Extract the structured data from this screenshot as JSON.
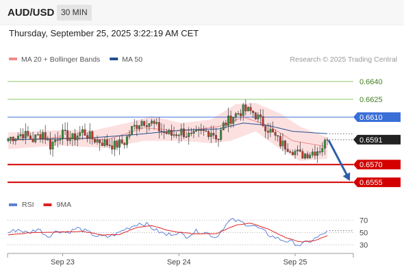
{
  "header": {
    "symbol": "AUD/USD",
    "timeframe": "30 MIN",
    "datetime": "Thursday, September 25, 2025 3:22:19 AM CET"
  },
  "colors": {
    "candle_up": "#3a8f3a",
    "candle_down": "#c0392b",
    "ma20": "#f08a8a",
    "band_fill": "#fbd6d6",
    "ma50": "#1f4e8f",
    "level_green": "#8cc96b",
    "level_blue": "#3a6fd8",
    "level_red": "#d40000",
    "arrow": "#2d5fa8",
    "rsi": "#5b80d6",
    "rsi_ma": "#e02020"
  },
  "chart_data": [
    {
      "type": "candlestick",
      "legend": [
        {
          "name": "MA 20 + Bollinger Bands",
          "color": "#f08a8a"
        },
        {
          "name": "MA 50",
          "color": "#1f4e8f"
        }
      ],
      "legend_position": "top-left",
      "watermark": "Research © 2025 Trading Central",
      "ylim": [
        0.6547,
        0.6651
      ],
      "levels": [
        {
          "value": 0.664,
          "label": "0.6640",
          "style": "green"
        },
        {
          "value": 0.6625,
          "label": "0.6625",
          "style": "green"
        },
        {
          "value": 0.661,
          "label": "0.6610",
          "style": "blue"
        },
        {
          "value": 0.6591,
          "label": "0.6591",
          "style": "current"
        },
        {
          "value": 0.657,
          "label": "0.6570",
          "style": "red"
        },
        {
          "value": 0.6555,
          "label": "0.6555",
          "style": "red"
        }
      ],
      "anchors": [
        [
          0,
          0.6592
        ],
        [
          6,
          0.6596
        ],
        [
          10,
          0.6591
        ],
        [
          14,
          0.6597
        ],
        [
          17,
          0.6586
        ],
        [
          21,
          0.6596
        ],
        [
          26,
          0.6592
        ],
        [
          30,
          0.6598
        ],
        [
          34,
          0.6592
        ],
        [
          38,
          0.6589
        ],
        [
          43,
          0.6586
        ],
        [
          47,
          0.6589
        ],
        [
          50,
          0.66
        ],
        [
          54,
          0.6607
        ],
        [
          58,
          0.6605
        ],
        [
          62,
          0.6598
        ],
        [
          66,
          0.6595
        ],
        [
          70,
          0.6598
        ],
        [
          74,
          0.6593
        ],
        [
          78,
          0.6597
        ],
        [
          82,
          0.6598
        ],
        [
          85,
          0.6592
        ],
        [
          87,
          0.6603
        ],
        [
          91,
          0.6611
        ],
        [
          95,
          0.6616
        ],
        [
          99,
          0.6614
        ],
        [
          102,
          0.6607
        ],
        [
          106,
          0.6598
        ],
        [
          110,
          0.6588
        ],
        [
          114,
          0.6584
        ],
        [
          118,
          0.6578
        ],
        [
          122,
          0.658
        ],
        [
          126,
          0.6583
        ],
        [
          128,
          0.6588
        ],
        [
          129,
          0.6591
        ]
      ],
      "ma20": [
        [
          0,
          0.659
        ],
        [
          20,
          0.6593
        ],
        [
          40,
          0.6591
        ],
        [
          55,
          0.6601
        ],
        [
          70,
          0.6598
        ],
        [
          85,
          0.6602
        ],
        [
          95,
          0.661
        ],
        [
          105,
          0.6603
        ],
        [
          115,
          0.659
        ],
        [
          129,
          0.6585
        ]
      ],
      "band_upper": [
        [
          0,
          0.6597
        ],
        [
          20,
          0.6599
        ],
        [
          35,
          0.6599
        ],
        [
          50,
          0.6606
        ],
        [
          58,
          0.6611
        ],
        [
          70,
          0.6605
        ],
        [
          82,
          0.6608
        ],
        [
          92,
          0.6621
        ],
        [
          100,
          0.6622
        ],
        [
          110,
          0.6613
        ],
        [
          118,
          0.6602
        ],
        [
          129,
          0.6593
        ]
      ],
      "band_lower": [
        [
          0,
          0.6583
        ],
        [
          20,
          0.6586
        ],
        [
          40,
          0.6584
        ],
        [
          55,
          0.659
        ],
        [
          70,
          0.659
        ],
        [
          82,
          0.6588
        ],
        [
          90,
          0.659
        ],
        [
          100,
          0.6598
        ],
        [
          110,
          0.6583
        ],
        [
          118,
          0.6573
        ],
        [
          129,
          0.6575
        ]
      ],
      "ma50": [
        [
          0,
          0.6591
        ],
        [
          30,
          0.6592
        ],
        [
          50,
          0.6595
        ],
        [
          70,
          0.6599
        ],
        [
          85,
          0.66
        ],
        [
          95,
          0.6605
        ],
        [
          105,
          0.6603
        ],
        [
          115,
          0.6598
        ],
        [
          129,
          0.6596
        ]
      ],
      "forecast_arrow": {
        "from": 0.6591,
        "to": 0.6555
      }
    },
    {
      "type": "line",
      "legend": [
        {
          "name": "RSI",
          "color": "#5b80d6"
        },
        {
          "name": "9MA",
          "color": "#e02020"
        }
      ],
      "ylim": [
        23,
        78
      ],
      "yticks": [
        70,
        50,
        30
      ],
      "rsi": [
        [
          0,
          50
        ],
        [
          4,
          55
        ],
        [
          8,
          49
        ],
        [
          12,
          56
        ],
        [
          16,
          44
        ],
        [
          20,
          53
        ],
        [
          24,
          50
        ],
        [
          28,
          57
        ],
        [
          32,
          51
        ],
        [
          36,
          44
        ],
        [
          40,
          43
        ],
        [
          44,
          48
        ],
        [
          47,
          55
        ],
        [
          50,
          60
        ],
        [
          53,
          65
        ],
        [
          56,
          63
        ],
        [
          60,
          53
        ],
        [
          64,
          46
        ],
        [
          68,
          50
        ],
        [
          72,
          44
        ],
        [
          76,
          52
        ],
        [
          80,
          50
        ],
        [
          84,
          42
        ],
        [
          87,
          58
        ],
        [
          90,
          70
        ],
        [
          93,
          68
        ],
        [
          96,
          64
        ],
        [
          99,
          61
        ],
        [
          102,
          55
        ],
        [
          106,
          45
        ],
        [
          110,
          39
        ],
        [
          114,
          35
        ],
        [
          118,
          30
        ],
        [
          122,
          36
        ],
        [
          126,
          44
        ],
        [
          129,
          53
        ]
      ],
      "rsi_ma": [
        [
          0,
          46
        ],
        [
          10,
          50
        ],
        [
          20,
          51
        ],
        [
          30,
          52
        ],
        [
          38,
          46
        ],
        [
          45,
          47
        ],
        [
          52,
          58
        ],
        [
          58,
          61
        ],
        [
          66,
          52
        ],
        [
          75,
          48
        ],
        [
          84,
          48
        ],
        [
          92,
          62
        ],
        [
          98,
          65
        ],
        [
          105,
          56
        ],
        [
          112,
          42
        ],
        [
          118,
          35
        ],
        [
          124,
          37
        ],
        [
          129,
          45
        ]
      ]
    }
  ],
  "xaxis": {
    "ticks": [
      {
        "index": 22,
        "label": "Sep 23"
      },
      {
        "index": 69,
        "label": "Sep 24"
      },
      {
        "index": 116,
        "label": "Sep 25"
      }
    ]
  }
}
